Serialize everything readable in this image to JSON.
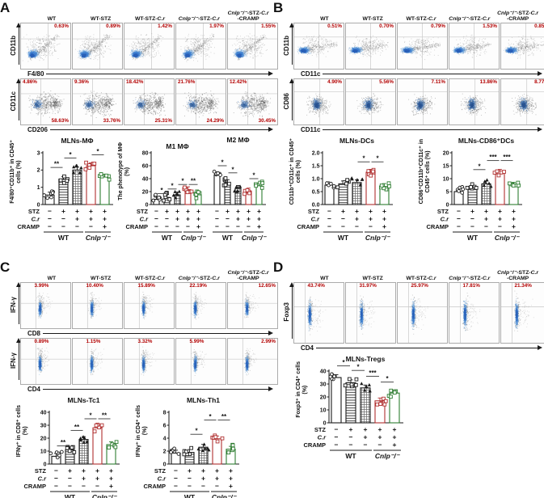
{
  "colors": {
    "percent_red": "#b30000",
    "bar_red": "#b03030",
    "bar_green": "#2f7d32",
    "scatter_blue": "#3f7fd0",
    "axis_black": "#1a1a1a"
  },
  "col_headers": [
    "WT",
    "WT-STZ",
    "WT-STZ-C.r",
    "Cnlp⁻/⁻-STZ-C.r",
    "Cnlp⁻/⁻-STZ-C.r\n-CRAMP"
  ],
  "treatment": {
    "rows": [
      {
        "label": "STZ",
        "italic": false,
        "values": [
          "−",
          "+",
          "+",
          "+",
          "+"
        ]
      },
      {
        "label": "C.r",
        "italic": true,
        "values": [
          "−",
          "−",
          "+",
          "+",
          "+"
        ]
      },
      {
        "label": "CRAMP",
        "italic": false,
        "values": [
          "−",
          "−",
          "−",
          "−",
          "+"
        ]
      }
    ],
    "groups": [
      {
        "label": "WT",
        "italic": false,
        "from": 0,
        "to": 2
      },
      {
        "label": "Cnlp⁻/⁻",
        "italic": true,
        "from": 3,
        "to": 4
      }
    ]
  },
  "panels": {
    "A": {
      "label": "A",
      "flow_rows": [
        {
          "y_label": "CD11b",
          "x_label": "F4/80",
          "plots": [
            {
              "pcts": [
                {
                  "text": "0.63%",
                  "pos": "tr"
                }
              ]
            },
            {
              "pcts": [
                {
                  "text": "0.89%",
                  "pos": "tr"
                }
              ]
            },
            {
              "pcts": [
                {
                  "text": "1.42%",
                  "pos": "tr"
                }
              ]
            },
            {
              "pcts": [
                {
                  "text": "1.97%",
                  "pos": "tr"
                }
              ]
            },
            {
              "pcts": [
                {
                  "text": "1.55%",
                  "pos": "tr"
                }
              ]
            }
          ]
        },
        {
          "y_label": "CD11c",
          "x_label": "CD206",
          "plots": [
            {
              "pcts": [
                {
                  "text": "4.86%",
                  "pos": "tl"
                },
                {
                  "text": "58.63%",
                  "pos": "br"
                }
              ]
            },
            {
              "pcts": [
                {
                  "text": "9.36%",
                  "pos": "tl"
                },
                {
                  "text": "33.76%",
                  "pos": "br"
                }
              ]
            },
            {
              "pcts": [
                {
                  "text": "18.42%",
                  "pos": "tl"
                },
                {
                  "text": "25.31%",
                  "pos": "br"
                }
              ]
            },
            {
              "pcts": [
                {
                  "text": "21.76%",
                  "pos": "tl"
                },
                {
                  "text": "24.29%",
                  "pos": "br"
                }
              ]
            },
            {
              "pcts": [
                {
                  "text": "12.42%",
                  "pos": "tl"
                },
                {
                  "text": "30.45%",
                  "pos": "br"
                }
              ]
            }
          ]
        }
      ],
      "charts": [
        "mlns_mphi",
        "m1m2"
      ]
    },
    "B": {
      "label": "B",
      "flow_rows": [
        {
          "y_label": "CD11b",
          "x_label": "CD11c",
          "plots": [
            {
              "pcts": [
                {
                  "text": "0.51%",
                  "pos": "tr"
                }
              ]
            },
            {
              "pcts": [
                {
                  "text": "0.70%",
                  "pos": "tr"
                }
              ]
            },
            {
              "pcts": [
                {
                  "text": "0.79%",
                  "pos": "tr"
                }
              ]
            },
            {
              "pcts": [
                {
                  "text": "1.53%",
                  "pos": "tr"
                }
              ]
            },
            {
              "pcts": [
                {
                  "text": "0.85%",
                  "pos": "tr"
                }
              ]
            }
          ]
        },
        {
          "y_label": "CD86",
          "x_label": "CD11c",
          "plots": [
            {
              "pcts": [
                {
                  "text": "4.90%",
                  "pos": "tr"
                }
              ]
            },
            {
              "pcts": [
                {
                  "text": "5.56%",
                  "pos": "tr"
                }
              ]
            },
            {
              "pcts": [
                {
                  "text": "7.11%",
                  "pos": "tr"
                }
              ]
            },
            {
              "pcts": [
                {
                  "text": "13.86%",
                  "pos": "tr"
                }
              ]
            },
            {
              "pcts": [
                {
                  "text": "8.77%",
                  "pos": "tr"
                }
              ]
            }
          ]
        }
      ],
      "charts": [
        "mlns_dcs",
        "mlns_cd86_dcs"
      ]
    },
    "C": {
      "label": "C",
      "flow_rows": [
        {
          "y_label": "IFN-γ",
          "x_label": "CD8",
          "plots": [
            {
              "pcts": [
                {
                  "text": "3.99%",
                  "pos": "tm"
                }
              ]
            },
            {
              "pcts": [
                {
                  "text": "10.40%",
                  "pos": "tm"
                }
              ]
            },
            {
              "pcts": [
                {
                  "text": "15.89%",
                  "pos": "tm"
                }
              ]
            },
            {
              "pcts": [
                {
                  "text": "22.19%",
                  "pos": "tm"
                }
              ]
            },
            {
              "pcts": [
                {
                  "text": "12.65%",
                  "pos": "tr"
                }
              ]
            }
          ]
        },
        {
          "y_label": "IFN-γ",
          "x_label": "CD4",
          "plots": [
            {
              "pcts": [
                {
                  "text": "0.89%",
                  "pos": "tm"
                }
              ]
            },
            {
              "pcts": [
                {
                  "text": "1.15%",
                  "pos": "tm"
                }
              ]
            },
            {
              "pcts": [
                {
                  "text": "3.32%",
                  "pos": "tm"
                }
              ]
            },
            {
              "pcts": [
                {
                  "text": "5.99%",
                  "pos": "tm"
                }
              ]
            },
            {
              "pcts": [
                {
                  "text": "2.99%",
                  "pos": "tr"
                }
              ]
            }
          ]
        }
      ],
      "charts": [
        "mlns_tc1",
        "mlns_th1"
      ]
    },
    "D": {
      "label": "D",
      "flow_rows": [
        {
          "y_label": "Foxp3",
          "x_label": "CD4",
          "plots": [
            {
              "pcts": [
                {
                  "text": "43.74%",
                  "pos": "tm"
                }
              ]
            },
            {
              "pcts": [
                {
                  "text": "31.97%",
                  "pos": "tm"
                }
              ]
            },
            {
              "pcts": [
                {
                  "text": "25.97%",
                  "pos": "tm"
                }
              ]
            },
            {
              "pcts": [
                {
                  "text": "17.81%",
                  "pos": "tm"
                }
              ]
            },
            {
              "pcts": [
                {
                  "text": "21.34%",
                  "pos": "tm"
                }
              ]
            }
          ]
        }
      ],
      "charts": [
        "mlns_tregs"
      ]
    }
  },
  "chart_data": [
    {
      "id": "mlns_mphi",
      "type": "bar",
      "title": "MLNs-MΦ",
      "ylabel": "F4/80⁺CD11b⁺ in CD45⁺\ncells (%)",
      "categories": [
        "WT",
        "WT-STZ",
        "WT-STZ-C.r",
        "Cnlp⁻/⁻-STZ-C.r",
        "Cnlp⁻/⁻-STZ-C.r-CRAMP"
      ],
      "ylim": [
        0,
        3
      ],
      "yticks": [
        "0",
        "1",
        "2",
        "3"
      ],
      "values": [
        0.55,
        1.45,
        2.0,
        2.25,
        1.6
      ],
      "sig": [
        [
          0,
          1,
          "**",
          2.15
        ],
        [
          1,
          2,
          "*",
          2.7
        ],
        [
          3,
          4,
          "*",
          2.88
        ]
      ]
    },
    {
      "id": "m1m2",
      "type": "bar",
      "title": "",
      "group_titles": [
        "M1 MΦ",
        "M2 MΦ"
      ],
      "ylabel": "The phenotype of MΦ\n(%)",
      "categories": [
        "WT",
        "WT-STZ",
        "WT-STZ-C.r",
        "Cnlp⁻/⁻-STZ-C.r",
        "Cnlp⁻/⁻-STZ-C.r-CRAMP"
      ],
      "ylim": [
        0,
        80
      ],
      "yticks": [
        "0",
        "20",
        "40",
        "60",
        "80"
      ],
      "series": [
        {
          "name": "M1 MΦ",
          "values": [
            8,
            11,
            15,
            23,
            15
          ]
        },
        {
          "name": "M2 MΦ",
          "values": [
            46,
            34,
            25,
            21,
            29
          ]
        }
      ],
      "sig": [
        [
          0,
          1,
          "*",
          17
        ],
        [
          1,
          2,
          "*",
          24
        ],
        [
          2,
          3,
          "*",
          31
        ],
        [
          3,
          4,
          "**",
          31
        ],
        [
          5,
          6,
          "*",
          60
        ],
        [
          6,
          7,
          "*",
          49
        ],
        [
          8,
          9,
          "*",
          40
        ]
      ]
    },
    {
      "id": "mlns_dcs",
      "type": "bar",
      "title": "MLNs-DCs",
      "ylabel": "CD11b⁺CD11c⁺ in CD45⁺\ncells (%)",
      "categories": [
        "WT",
        "WT-STZ",
        "WT-STZ-C.r",
        "Cnlp⁻/⁻-STZ-C.r",
        "Cnlp⁻/⁻-STZ-C.r-CRAMP"
      ],
      "ylim": [
        0,
        2
      ],
      "yticks": [
        "0.0",
        "0.5",
        "1.0",
        "1.5",
        "2.0"
      ],
      "values": [
        0.75,
        0.8,
        0.85,
        1.25,
        0.7
      ],
      "sig": [
        [
          2,
          3,
          "*",
          1.65
        ],
        [
          3,
          4,
          "*",
          1.65
        ]
      ]
    },
    {
      "id": "mlns_cd86_dcs",
      "type": "bar",
      "title": "MLNs-CD86⁺DCs",
      "ylabel": "CD86⁺CD11b⁺CD11c⁺ in\nCD45⁺ cells (%)",
      "categories": [
        "WT",
        "WT-STZ",
        "WT-STZ-C.r",
        "Cnlp⁻/⁻-STZ-C.r",
        "Cnlp⁻/⁻-STZ-C.r-CRAMP"
      ],
      "ylim": [
        0,
        20
      ],
      "yticks": [
        "0",
        "5",
        "10",
        "15",
        "20"
      ],
      "values": [
        5,
        6.3,
        8,
        12.5,
        7.5
      ],
      "sig": [
        [
          1,
          2,
          "*",
          13.5
        ],
        [
          2,
          3,
          "***",
          17
        ],
        [
          3,
          4,
          "***",
          17
        ]
      ]
    },
    {
      "id": "mlns_tc1",
      "type": "bar",
      "title": "MLNs-Tc1",
      "ylabel": "IFNγ⁺ in CD8⁺ cells\n(%)",
      "categories": [
        "WT",
        "WT-STZ",
        "WT-STZ-C.r",
        "Cnlp⁻/⁻-STZ-C.r",
        "Cnlp⁻/⁻-STZ-C.r-CRAMP"
      ],
      "ylim": [
        0,
        40
      ],
      "yticks": [
        "0",
        "10",
        "20",
        "30",
        "40"
      ],
      "values": [
        6,
        11,
        19,
        28,
        15
      ],
      "sig": [
        [
          0,
          1,
          "**",
          14
        ],
        [
          1,
          2,
          "**",
          26
        ],
        [
          2,
          3,
          "*",
          35
        ],
        [
          3,
          4,
          "**",
          35
        ]
      ]
    },
    {
      "id": "mlns_th1",
      "type": "bar",
      "title": "MLNs-Th1",
      "ylabel": "IFNγ⁺ in CD4⁺ cells\n(%)",
      "categories": [
        "WT",
        "WT-STZ",
        "WT-STZ-C.r",
        "Cnlp⁻/⁻-STZ-C.r",
        "Cnlp⁻/⁻-STZ-C.r-CRAMP"
      ],
      "ylim": [
        0,
        8
      ],
      "yticks": [
        "0",
        "2",
        "4",
        "6",
        "8"
      ],
      "values": [
        1.7,
        1.8,
        2.6,
        3.9,
        2.3
      ],
      "sig": [
        [
          1,
          2,
          "*",
          4.6
        ],
        [
          2,
          3,
          "*",
          6.8
        ],
        [
          3,
          4,
          "**",
          6.8
        ]
      ]
    },
    {
      "id": "mlns_tregs",
      "type": "bar",
      "title": "MLNs-Tregs",
      "ylabel": "Foxp3⁺ in CD4⁺ cells\n(%)",
      "categories": [
        "WT",
        "WT-STZ",
        "WT-STZ-C.r",
        "Cnlp⁻/⁻-STZ-C.r",
        "Cnlp⁻/⁻-STZ-C.r-CRAMP"
      ],
      "ylim": [
        0,
        40
      ],
      "yticks": [
        "0",
        "10",
        "20",
        "30",
        "40"
      ],
      "values": [
        35,
        31,
        27,
        17,
        23
      ],
      "sig": [
        [
          0,
          1,
          "*",
          44
        ],
        [
          1,
          2,
          "*",
          40.5
        ],
        [
          2,
          3,
          "***",
          36
        ],
        [
          3,
          4,
          "*",
          31.5
        ]
      ]
    }
  ]
}
